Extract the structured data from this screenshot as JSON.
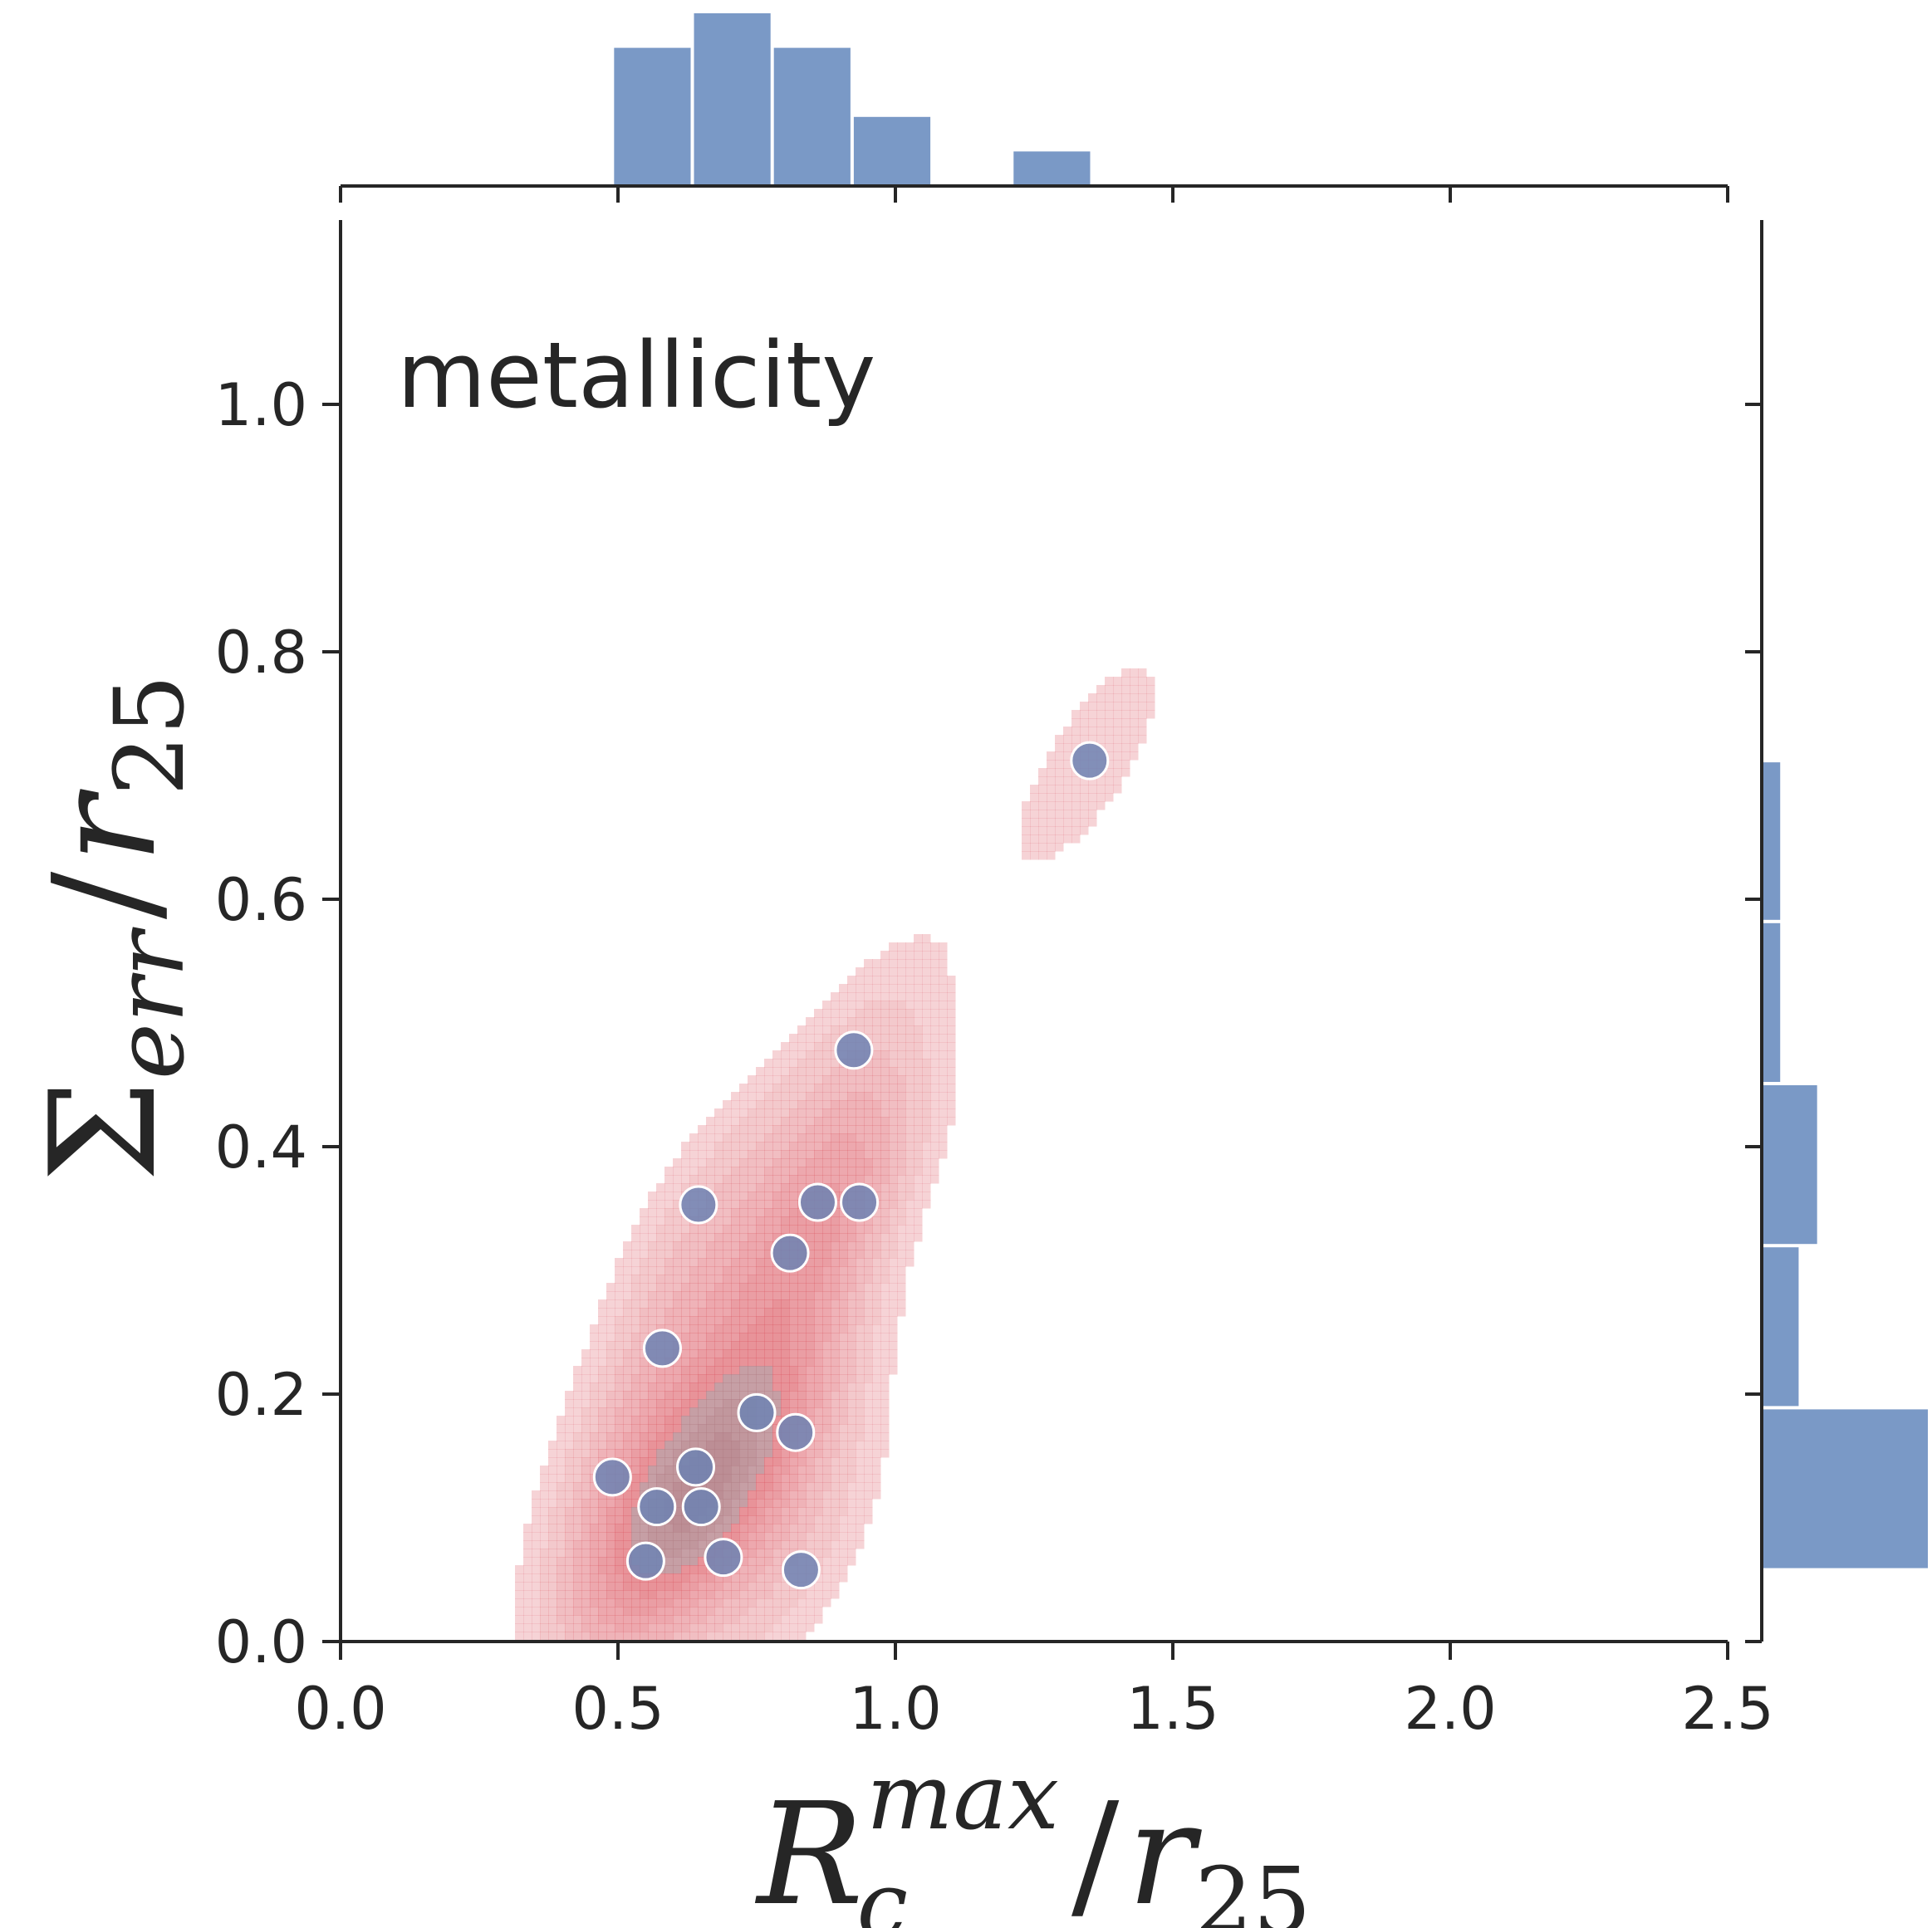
{
  "chart_data": {
    "type": "scatter",
    "annotation": "metallicity",
    "xlabel": {
      "main": "R",
      "sub": "c",
      "sup": "max",
      "slash": "/",
      "denom": "r",
      "denom_sub": "25"
    },
    "ylabel": {
      "main": "Σ",
      "sub": "err",
      "slash": "/",
      "denom": "r",
      "denom_sub": "25"
    },
    "xlim": [
      0.0,
      2.5
    ],
    "ylim": [
      0.0,
      1.15
    ],
    "xticks": [
      "0.0",
      "0.5",
      "1.0",
      "1.5",
      "2.0",
      "2.5"
    ],
    "yticks": [
      "0.0",
      "0.2",
      "0.4",
      "0.6",
      "0.8",
      "1.0"
    ],
    "grid": false,
    "points": [
      {
        "x": 0.49,
        "y": 0.133
      },
      {
        "x": 0.55,
        "y": 0.065
      },
      {
        "x": 0.57,
        "y": 0.109
      },
      {
        "x": 0.58,
        "y": 0.237
      },
      {
        "x": 0.64,
        "y": 0.141
      },
      {
        "x": 0.645,
        "y": 0.353
      },
      {
        "x": 0.65,
        "y": 0.109
      },
      {
        "x": 0.69,
        "y": 0.068
      },
      {
        "x": 0.75,
        "y": 0.185
      },
      {
        "x": 0.81,
        "y": 0.314
      },
      {
        "x": 0.82,
        "y": 0.169
      },
      {
        "x": 0.83,
        "y": 0.058
      },
      {
        "x": 0.86,
        "y": 0.355
      },
      {
        "x": 0.925,
        "y": 0.478
      },
      {
        "x": 0.935,
        "y": 0.355
      },
      {
        "x": 1.35,
        "y": 0.712
      }
    ],
    "x_histogram": {
      "bin_edges": [
        0.49,
        0.634,
        0.778,
        0.922,
        1.066,
        1.21,
        1.354
      ],
      "counts": [
        4,
        5,
        4,
        2,
        0,
        1
      ]
    },
    "y_histogram": {
      "bin_edges": [
        0.058,
        0.189,
        0.32,
        0.451,
        0.582,
        0.712
      ],
      "counts": [
        9,
        2,
        3,
        1,
        1
      ]
    },
    "colors": {
      "points": "#6d82b3",
      "point_edge": "#ffffff",
      "histogram": "#7a99c6",
      "kde": "#dc5a64",
      "axis": "#262626"
    }
  }
}
